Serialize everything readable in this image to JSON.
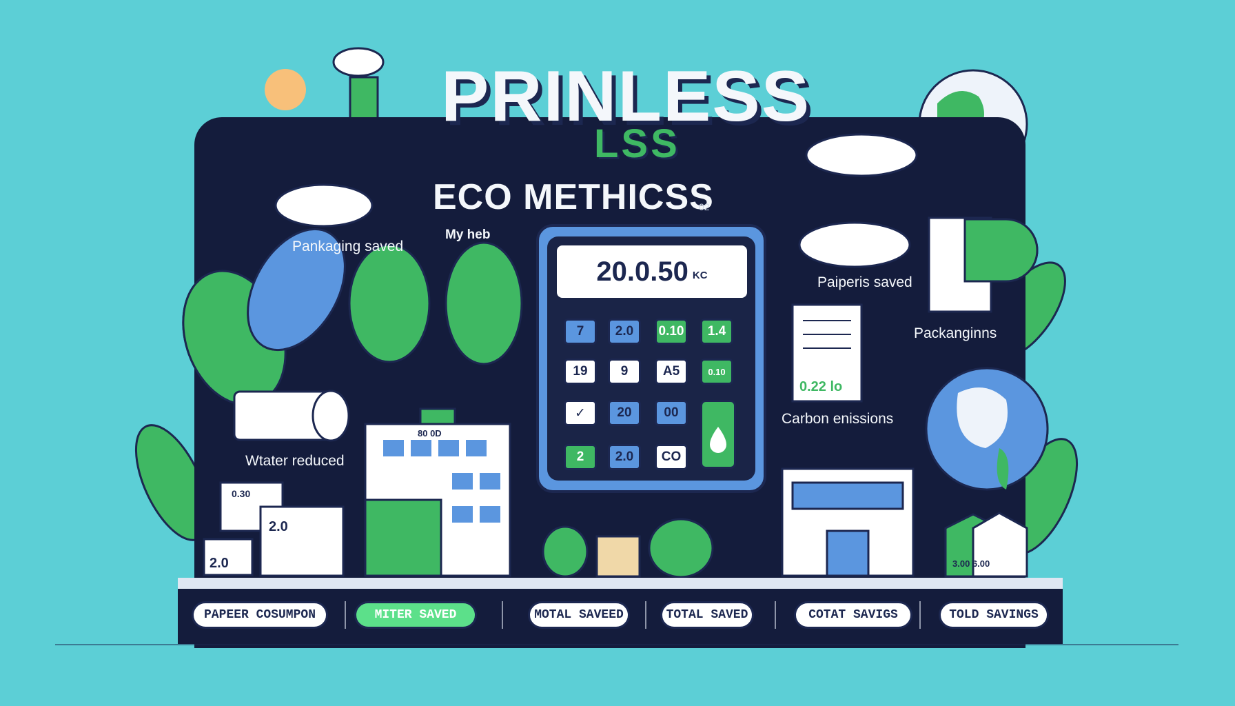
{
  "header": {
    "title_main": "PRINLESS",
    "title_sub": "LSS",
    "section_title": "ECO METHICSS",
    "section_tiny": "02",
    "tag": "My heb"
  },
  "labels": {
    "packaging_saved": "Pankaging saved",
    "papers_saved": "Paiperis saved",
    "packagings": "Packanginns",
    "carbon": "Carbon enissions",
    "water": "Wtater reduced",
    "doc_value": "0.22 lo",
    "envelope_a": "0.30",
    "envelope_b": "2.0",
    "envelope_c": "2.0",
    "building_sign": "80 0D",
    "right_building_sign": "3.00 6.00"
  },
  "calculator": {
    "display_value": "20.0.50",
    "display_unit": "KC",
    "keys": [
      "7",
      "2.0",
      "0.10",
      "1.4",
      "19",
      "9",
      "A5",
      "0.10",
      "✓",
      "20",
      "00",
      "2",
      "2.0",
      "CO"
    ]
  },
  "tabs": [
    "PAPEER COSUMPON",
    "MITER SAVED",
    "MOTAL SAVEED",
    "TOTAL SAVED",
    "COTAT SAVIGS",
    "TOLD SAVINGS"
  ],
  "colors": {
    "background": "#5ccfd6",
    "board": "#141c3c",
    "green": "#3fb863",
    "blue": "#5b96df",
    "navy": "#1c2750"
  }
}
